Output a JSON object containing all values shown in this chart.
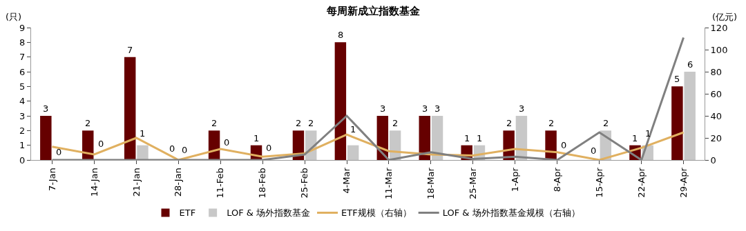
{
  "chart_data": {
    "type": "bar",
    "title": "每周新成立指数基金",
    "ylabel": "(只)",
    "y2label": "(亿元)",
    "categories": [
      "7-Jan",
      "14-Jan",
      "21-Jan",
      "28-Jan",
      "11-Feb",
      "18-Feb",
      "25-Feb",
      "4-Mar",
      "11-Mar",
      "18-Mar",
      "25-Mar",
      "1-Apr",
      "8-Apr",
      "15-Apr",
      "22-Apr",
      "29-Apr"
    ],
    "series": [
      {
        "name": "ETF",
        "color": "#660000",
        "values": [
          3,
          2,
          7,
          0,
          2,
          1,
          2,
          8,
          3,
          3,
          1,
          2,
          2,
          0,
          1,
          5
        ],
        "value_labels": [
          "3",
          "2",
          "7",
          "0",
          "2",
          "1",
          "2",
          "8",
          "3",
          "3",
          "1",
          "2",
          "2",
          "0",
          "1",
          "5"
        ]
      },
      {
        "name": "LOF & 场外指数基金",
        "color": "#c8c8c8",
        "values": [
          0,
          0,
          1,
          0,
          0,
          0,
          2,
          1,
          2,
          3,
          1,
          3,
          0,
          2,
          1,
          6
        ],
        "value_labels": [
          "0",
          "0",
          "1",
          "0",
          "0",
          "0",
          "2",
          "1",
          "2",
          "3",
          "1",
          "3",
          "0",
          "2",
          "1",
          "6"
        ]
      },
      {
        "name": "ETF规模（右轴）",
        "type": "line",
        "axis": "y2",
        "color": "#e0b060",
        "values": [
          12,
          5,
          20,
          0,
          10,
          3,
          6,
          23,
          8,
          5,
          4,
          10,
          7,
          0,
          11,
          25
        ]
      },
      {
        "name": "LOF & 场外指数基金规模（右轴）",
        "type": "line",
        "axis": "y2",
        "color": "#808080",
        "values": [
          0,
          0,
          0,
          0,
          0,
          0,
          5,
          40,
          0,
          7,
          1,
          3,
          0,
          25,
          0,
          111
        ]
      }
    ],
    "ylim": [
      0,
      9
    ],
    "yticks": [
      0,
      1,
      2,
      3,
      4,
      5,
      6,
      7,
      8,
      9
    ],
    "y2lim": [
      0,
      120
    ],
    "y2ticks": [
      0,
      20,
      40,
      60,
      80,
      100,
      120
    ],
    "grid": false,
    "legend": "bottom",
    "marker": "none",
    "line_style": "solid"
  }
}
